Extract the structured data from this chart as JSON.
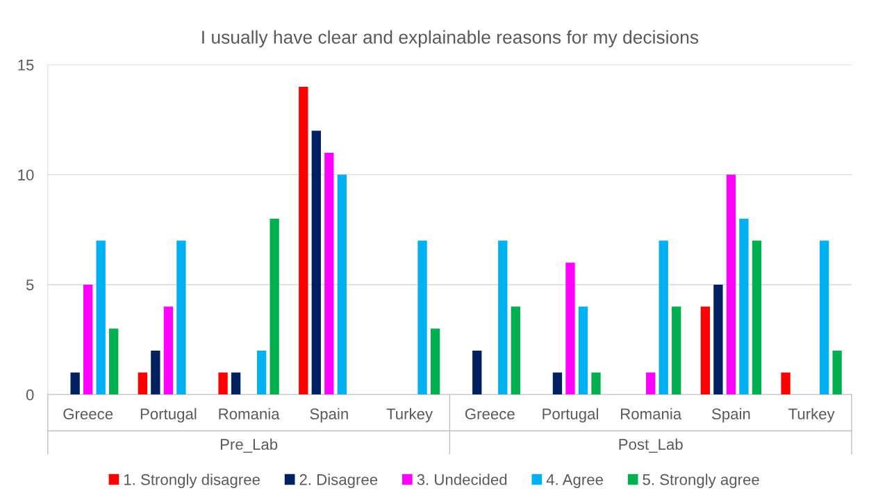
{
  "chart_data": {
    "type": "bar",
    "title": "I usually have clear and explainable reasons for my decisions",
    "categories": [
      "Greece",
      "Portugal",
      "Romania",
      "Spain",
      "Turkey",
      "Greece",
      "Portugal",
      "Romania",
      "Spain",
      "Turkey"
    ],
    "annotations": [
      "Pre_Lab",
      "Post_Lab"
    ],
    "series": [
      {
        "name": "1. Strongly disagree",
        "color": "#ff0000",
        "values": [
          0,
          1,
          1,
          14,
          0,
          0,
          0,
          0,
          4,
          1
        ]
      },
      {
        "name": "2. Disagree",
        "color": "#002060",
        "values": [
          1,
          2,
          1,
          12,
          0,
          2,
          1,
          0,
          5,
          0
        ]
      },
      {
        "name": "3. Undecided",
        "color": "#ff00ff",
        "values": [
          5,
          4,
          0,
          11,
          0,
          0,
          6,
          1,
          10,
          0
        ]
      },
      {
        "name": "4. Agree",
        "color": "#00b0f0",
        "values": [
          7,
          7,
          2,
          10,
          7,
          7,
          4,
          7,
          8,
          7
        ]
      },
      {
        "name": "5. Strongly agree",
        "color": "#00b050",
        "values": [
          3,
          0,
          8,
          0,
          3,
          4,
          1,
          4,
          7,
          2
        ]
      }
    ],
    "ylim": [
      0,
      15
    ],
    "yticks": [
      0,
      5,
      10,
      15
    ],
    "grid": "y",
    "legend": "bottom"
  }
}
